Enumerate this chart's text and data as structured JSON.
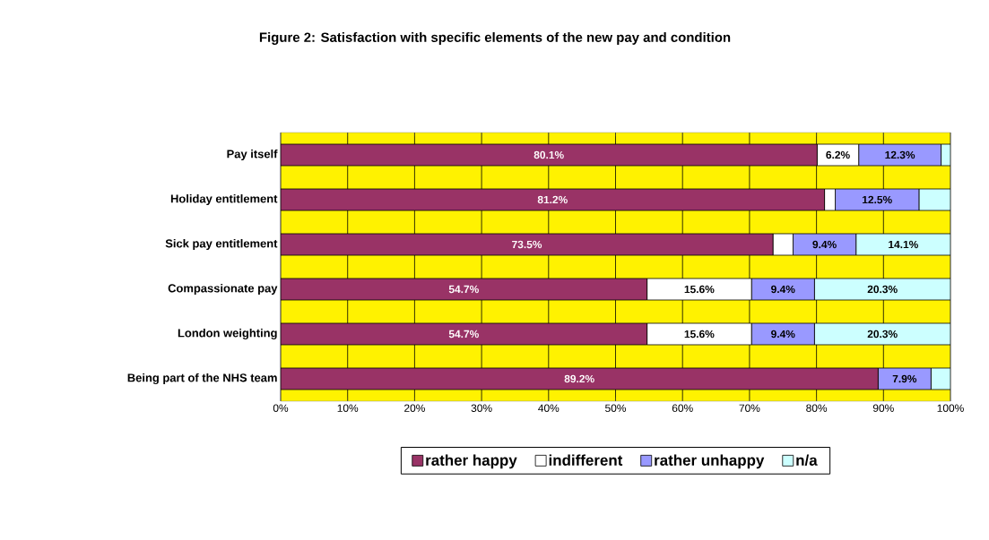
{
  "chart_data": {
    "type": "bar",
    "orientation": "horizontal",
    "stacked": true,
    "title": "Figure 2: Satisfaction with specific elements of the new pay and condition",
    "categories": [
      "Pay itself",
      "Holiday entitlement",
      "Sick pay entitlement",
      "Compassionate pay",
      "London weighting",
      "Being part of the NHS team"
    ],
    "series": [
      {
        "name": "rather happy",
        "color": "#993366",
        "values": [
          80.1,
          81.2,
          73.5,
          54.7,
          54.7,
          89.2
        ],
        "value_labels": [
          "80.1%",
          "81.2%",
          "73.5%",
          "54.7%",
          "54.7%",
          "89.2%"
        ]
      },
      {
        "name": "indifferent",
        "color": "#ffffff",
        "values": [
          6.2,
          1.6,
          3.0,
          15.6,
          15.6,
          0
        ],
        "value_labels": [
          "6.2%",
          null,
          null,
          "15.6%",
          "15.6%",
          null
        ]
      },
      {
        "name": "rather unhappy",
        "color": "#9999ff",
        "values": [
          12.3,
          12.5,
          9.4,
          9.4,
          9.4,
          7.9
        ],
        "value_labels": [
          "12.3%",
          "12.5%",
          "9.4%",
          "9.4%",
          "9.4%",
          "7.9%"
        ]
      },
      {
        "name": "n/a",
        "color": "#ccffff",
        "values": [
          1.4,
          4.7,
          14.1,
          20.3,
          20.3,
          2.9
        ],
        "value_labels": [
          null,
          null,
          "14.1%",
          "20.3%",
          "20.3%",
          null
        ]
      }
    ],
    "xlim": [
      0,
      100
    ],
    "xticks": [
      {
        "value": 0,
        "label": "0%"
      },
      {
        "value": 10,
        "label": "10%"
      },
      {
        "value": 20,
        "label": "20%"
      },
      {
        "value": 30,
        "label": "30%"
      },
      {
        "value": 40,
        "label": "40%"
      },
      {
        "value": 50,
        "label": "50%"
      },
      {
        "value": 60,
        "label": "60%"
      },
      {
        "value": 70,
        "label": "70%"
      },
      {
        "value": 80,
        "label": "80%"
      },
      {
        "value": 90,
        "label": "90%"
      },
      {
        "value": 100,
        "label": "100%"
      }
    ],
    "grid": "x",
    "legend": "bottom"
  }
}
